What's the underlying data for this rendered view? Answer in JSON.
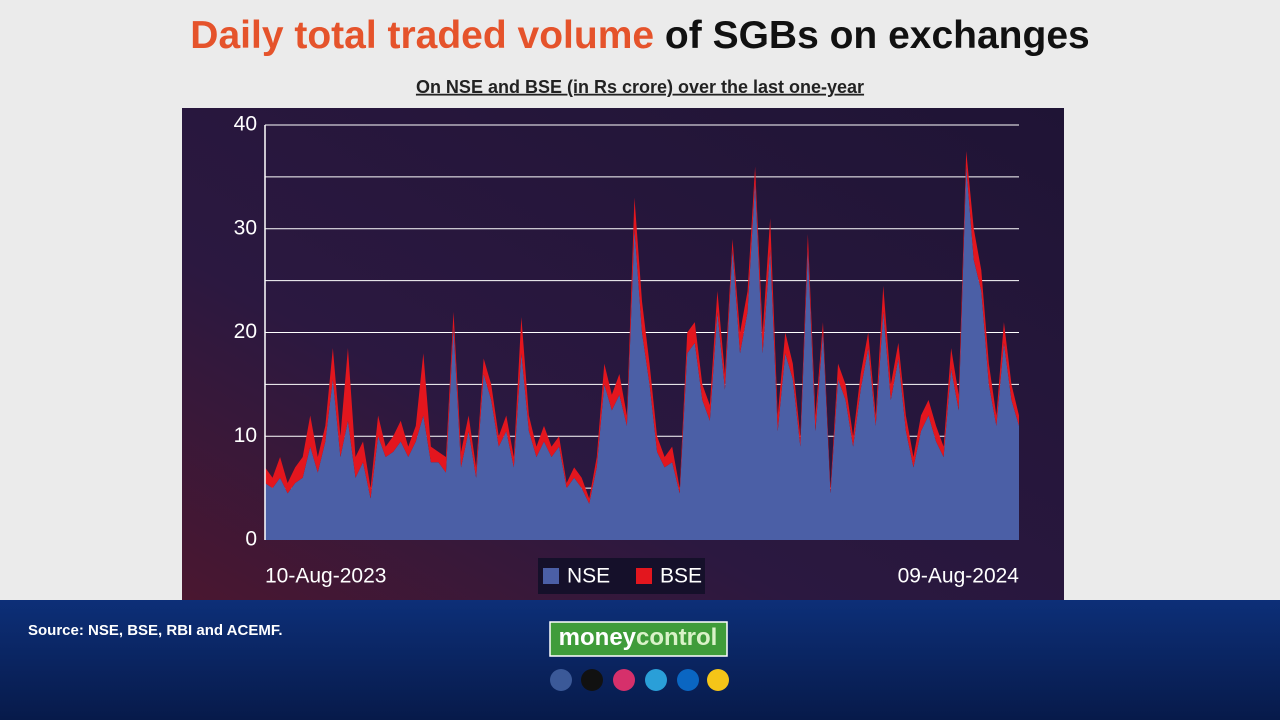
{
  "chart_data": {
    "type": "stacked_area",
    "title_parts": [
      "Daily total traded volume",
      "of SGBs on exchanges"
    ],
    "subtitle": "On NSE and BSE (in Rs crore) over the last one-year",
    "source": "Source: NSE, BSE, RBI and ACEMF.",
    "logo": [
      "money",
      "control"
    ],
    "categories": [
      "10-Aug-2023",
      null,
      null,
      null,
      null,
      null,
      null,
      null,
      null,
      null,
      null,
      null,
      null,
      null,
      null,
      null,
      null,
      null,
      null,
      null,
      null,
      null,
      null,
      null,
      null,
      null,
      null,
      null,
      null,
      null,
      null,
      null,
      null,
      null,
      null,
      null,
      null,
      null,
      null,
      null,
      null,
      null,
      null,
      null,
      null,
      null,
      null,
      null,
      null,
      null,
      null,
      null,
      null,
      null,
      null,
      null,
      null,
      null,
      null,
      null,
      null,
      null,
      null,
      null,
      null,
      null,
      null,
      null,
      null,
      null,
      null,
      null,
      null,
      null,
      null,
      null,
      null,
      null,
      null,
      null,
      null,
      null,
      null,
      null,
      null,
      null,
      null,
      null,
      null,
      null,
      null,
      null,
      null,
      null,
      null,
      null,
      null,
      null,
      null,
      null,
      "09-Aug-2024"
    ],
    "series": [
      {
        "name": "NSE",
        "color": "#4b5fa6",
        "values": [
          5.5,
          5,
          6,
          4.5,
          5.5,
          6,
          9,
          6.5,
          9.5,
          15.5,
          8,
          11.5,
          6,
          7.5,
          4,
          10,
          8,
          8.5,
          9.5,
          8,
          9.5,
          12,
          7.5,
          7.5,
          6.5,
          20.5,
          7,
          10.5,
          6,
          16,
          13.5,
          9,
          10.5,
          7,
          18,
          10.5,
          8,
          9.5,
          8,
          9,
          5,
          6,
          5,
          3.5,
          7,
          15,
          12.5,
          14,
          11,
          30,
          20,
          15,
          8.5,
          7,
          7.5,
          4.5,
          18,
          19,
          13.5,
          11.5,
          22,
          14.5,
          28,
          18,
          22,
          34.5,
          18,
          28,
          10.5,
          18,
          15.5,
          9,
          28,
          10.5,
          20,
          4.5,
          15.5,
          13.5,
          9,
          14.5,
          18.5,
          11,
          22,
          13.5,
          17.5,
          10.5,
          7,
          10.5,
          12,
          9.5,
          8,
          16.5,
          12.5,
          36,
          27,
          24,
          15,
          11,
          19,
          13.5,
          11
        ]
      },
      {
        "name": "BSE",
        "color": "#e3161e",
        "values": [
          1.5,
          1,
          2,
          1,
          1.5,
          2,
          3,
          1.5,
          1.5,
          3,
          2,
          7,
          2,
          2,
          1,
          2,
          1,
          1.5,
          2,
          1,
          1.5,
          6,
          1.5,
          1,
          1.5,
          1.5,
          1.5,
          1.5,
          1,
          1.5,
          1.5,
          1,
          1.5,
          1,
          3.5,
          1.5,
          1,
          1.5,
          1,
          1,
          0.5,
          1,
          1,
          0.5,
          1,
          2,
          1.5,
          2,
          1,
          3,
          3,
          2,
          1.5,
          1,
          1.5,
          0.5,
          2,
          2,
          1.5,
          1.5,
          2,
          1.5,
          1,
          2,
          2,
          1.5,
          2,
          3,
          1.5,
          2,
          1.5,
          1,
          1.5,
          1.5,
          1,
          0.5,
          1.5,
          1.5,
          1,
          1.5,
          1.5,
          1,
          2.5,
          1.5,
          1.5,
          1.5,
          1,
          1.5,
          1.5,
          1.5,
          1,
          2,
          1.5,
          1.5,
          3,
          2,
          2,
          1,
          2,
          1.5,
          1
        ]
      }
    ],
    "ylim": [
      0,
      40
    ],
    "yticks": [
      0,
      10,
      20,
      30,
      40
    ],
    "minor_yticks": [
      5,
      15,
      25,
      35
    ],
    "grid": true,
    "legend": "bottom"
  }
}
